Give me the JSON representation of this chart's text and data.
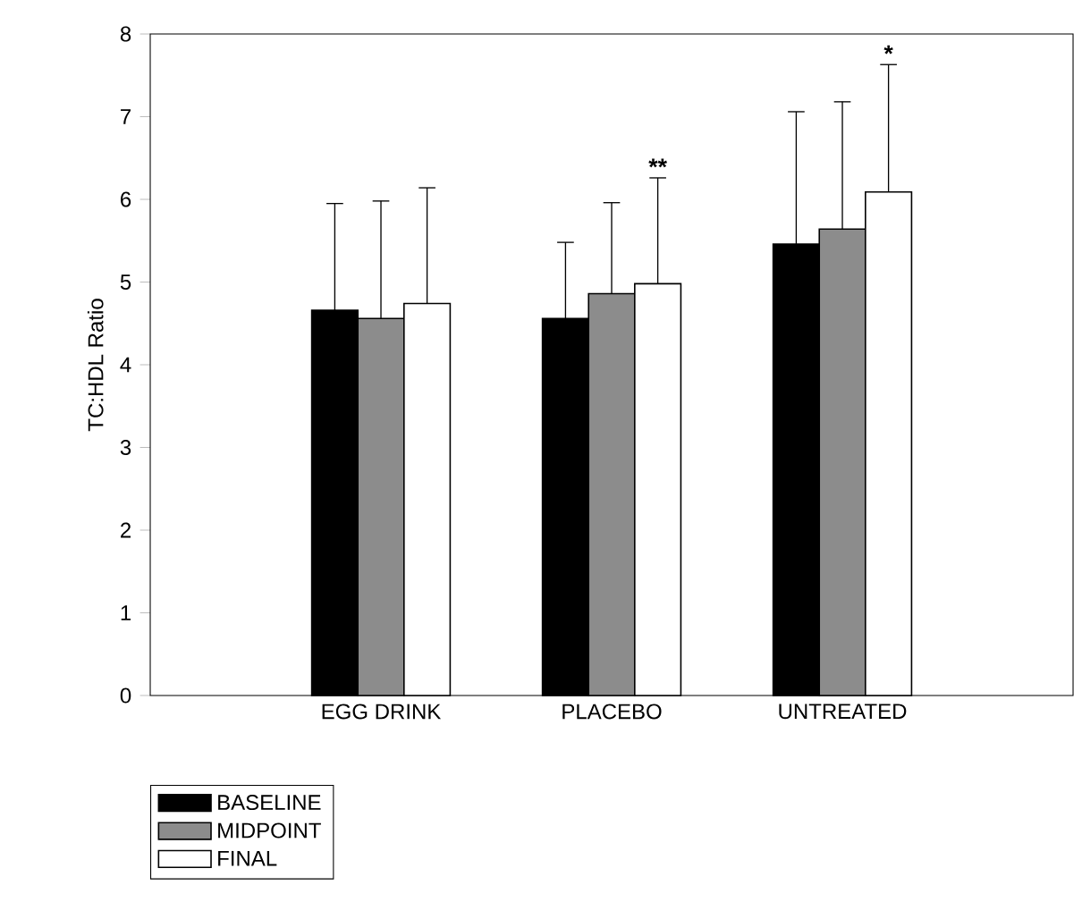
{
  "chart_data": {
    "type": "bar",
    "ylabel": "TC:HDL Ratio",
    "categories": [
      "EGG DRINK",
      "PLACEBO",
      "UNTREATED"
    ],
    "series": [
      {
        "name": "BASELINE",
        "color": "#000000",
        "values": [
          4.66,
          4.56,
          5.46
        ],
        "errors": [
          [
            4.66,
            5.95
          ],
          [
            4.56,
            5.48
          ],
          [
            5.46,
            7.06
          ]
        ]
      },
      {
        "name": "MIDPOINT",
        "color": "#8c8c8c",
        "values": [
          4.56,
          4.86,
          5.64
        ],
        "errors": [
          [
            4.56,
            5.98
          ],
          [
            4.86,
            5.96
          ],
          [
            5.64,
            7.18
          ]
        ]
      },
      {
        "name": "FINAL",
        "color": "#ffffff",
        "values": [
          4.74,
          4.98,
          6.09
        ],
        "errors": [
          [
            4.74,
            6.14
          ],
          [
            4.98,
            6.26
          ],
          [
            6.09,
            7.63
          ]
        ]
      }
    ],
    "ylim": [
      0,
      8
    ],
    "yticks": [
      0,
      1,
      2,
      3,
      4,
      5,
      6,
      7,
      8
    ],
    "legend": "bottom left",
    "annotations": [
      "**",
      "*"
    ]
  }
}
